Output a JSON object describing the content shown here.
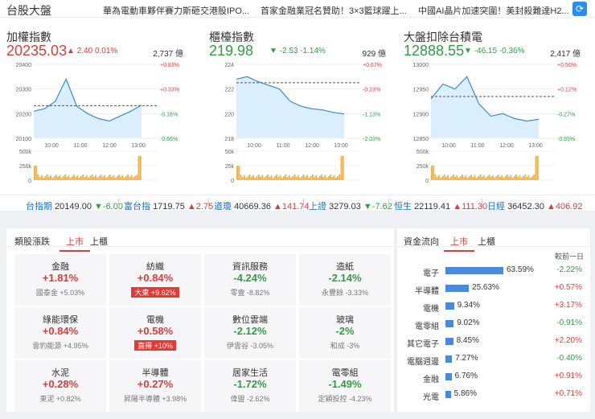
{
  "header": {
    "title": "台股大盤",
    "news": [
      "華為電動車夥伴賽力斯砸交港股IPO...",
      "首家金融業冠名贊助！3×3籃球躍上...",
      "中國AI晶片加速突圍！美封殺難達H2..."
    ],
    "refresh_icon": "refresh-icon"
  },
  "panels": [
    {
      "name": "加權指數",
      "value": "20235.03",
      "change": "2.40",
      "pct": "0.01%",
      "dir": "up",
      "volume": "2,737 億",
      "y_left": [
        "20400",
        "20300",
        "20200",
        "20100"
      ],
      "y_right": [
        "+0.83%",
        "+0.33%",
        "-0.16%",
        "-0.66%"
      ],
      "x_ticks": [
        "10:00",
        "11:00",
        "12:00",
        "13:00"
      ],
      "vol_axis": [
        "500k",
        "250k",
        "0"
      ]
    },
    {
      "name": "櫃檯指數",
      "value": "219.98",
      "change": "-2.53",
      "pct": "-1.14%",
      "dir": "down",
      "volume": "929 億",
      "y_left": [
        "224",
        "222",
        "220",
        "218"
      ],
      "y_right": [
        "+0.67%",
        "-0.23%",
        "-1.13%",
        "-2.03%"
      ],
      "x_ticks": [
        "10:00",
        "11:00",
        "12:00",
        "13:00"
      ],
      "vol_axis": [
        "50k",
        "25k",
        "0"
      ]
    },
    {
      "name": "大盤扣除台積電",
      "value": "12888.55",
      "change": "-46.15",
      "pct": "-0.36%",
      "dir": "down",
      "volume": "2,417 億",
      "y_left": [
        "13000",
        "12950",
        "12900",
        "12850"
      ],
      "y_right": [
        "+0.50%",
        "+0.12%",
        "-0.27%",
        "-0.65%"
      ],
      "x_ticks": [
        "10:00",
        "11:00",
        "12:00",
        "13:00"
      ],
      "vol_axis": [
        "500k",
        "250k",
        "0"
      ]
    }
  ],
  "chart_data": [
    {
      "type": "line",
      "title": "加權指數",
      "x": [
        "09:00",
        "09:30",
        "10:00",
        "10:15",
        "10:30",
        "11:00",
        "11:30",
        "12:00",
        "12:30",
        "13:00",
        "13:30"
      ],
      "y": [
        20210,
        20220,
        20250,
        20340,
        20230,
        20200,
        20180,
        20170,
        20190,
        20210,
        20235
      ],
      "ylim": [
        20100,
        20400
      ],
      "reference": 20232.63
    },
    {
      "type": "line",
      "title": "櫃檯指數",
      "x": [
        "09:00",
        "09:15",
        "09:30",
        "10:00",
        "10:30",
        "11:00",
        "11:30",
        "12:00",
        "12:30",
        "13:00",
        "13:30"
      ],
      "y": [
        222.8,
        223.0,
        222.6,
        222.3,
        222.0,
        221.0,
        220.6,
        220.4,
        220.3,
        220.1,
        219.98
      ],
      "ylim": [
        218,
        224
      ],
      "reference": 222.51
    },
    {
      "type": "line",
      "title": "大盤扣除台積電",
      "x": [
        "09:00",
        "09:30",
        "10:00",
        "10:30",
        "11:00",
        "11:30",
        "12:00",
        "12:30",
        "13:00",
        "13:30"
      ],
      "y": [
        12930,
        12960,
        12950,
        12975,
        12920,
        12895,
        12900,
        12890,
        12885,
        12888.55
      ],
      "ylim": [
        12850,
        13000
      ],
      "reference": 12934.7
    }
  ],
  "ticker": [
    {
      "name": "台指期",
      "value": "20149.00",
      "change": "▼-6.00",
      "dir": "down"
    },
    {
      "name": "富台指",
      "value": "1719.75",
      "change": "▲2.75",
      "dir": "up"
    },
    {
      "name": "道瓊",
      "value": "40669.36",
      "change": "▲141.74",
      "dir": "up"
    },
    {
      "name": "上證",
      "value": "3279.03",
      "change": "▼-7.62",
      "dir": "down"
    },
    {
      "name": "恒生",
      "value": "22119.41",
      "change": "▲111.30",
      "dir": "up"
    },
    {
      "name": "日經",
      "value": "36452.30",
      "change": "▲406.92",
      "dir": "up"
    }
  ],
  "sectors": {
    "title": "類股漲跌",
    "tabs": [
      "上市",
      "上櫃"
    ],
    "items": [
      {
        "name": "金融",
        "pct": "+1.81%",
        "dir": "up",
        "sub": "國泰金 +5.03%",
        "badge": false
      },
      {
        "name": "紡織",
        "pct": "+0.84%",
        "dir": "up",
        "sub": "大東 +9.62%",
        "badge": true
      },
      {
        "name": "資訊服務",
        "pct": "-4.24%",
        "dir": "down",
        "sub": "零壹 -8.82%",
        "badge": false
      },
      {
        "name": "造紙",
        "pct": "-2.14%",
        "dir": "down",
        "sub": "永豐餘 -3.33%",
        "badge": false
      },
      {
        "name": "綠能環保",
        "pct": "+0.84%",
        "dir": "up",
        "sub": "雲豹能源 +4.95%",
        "badge": false
      },
      {
        "name": "電機",
        "pct": "+0.58%",
        "dir": "up",
        "sub": "直得 +10%",
        "badge": true
      },
      {
        "name": "數位雲端",
        "pct": "-2.12%",
        "dir": "down",
        "sub": "伊雲谷 -3.05%",
        "badge": false
      },
      {
        "name": "玻璃",
        "pct": "-2%",
        "dir": "down",
        "sub": "和成 -3%",
        "badge": false
      },
      {
        "name": "水泥",
        "pct": "+0.28%",
        "dir": "up",
        "sub": "東泥 +0.82%",
        "badge": false
      },
      {
        "name": "半導體",
        "pct": "+0.27%",
        "dir": "up",
        "sub": "昇陽半導體 +3.98%",
        "badge": false
      },
      {
        "name": "居家生活",
        "pct": "-1.72%",
        "dir": "down",
        "sub": "偉盟 -2.62%",
        "badge": false
      },
      {
        "name": "電零組",
        "pct": "-1.49%",
        "dir": "down",
        "sub": "定穎投控 -4.23%",
        "badge": false
      }
    ]
  },
  "flow": {
    "title": "資金流向",
    "tabs": [
      "上市",
      "上櫃"
    ],
    "compare_label": "較前一日",
    "items": [
      {
        "name": "電子",
        "pct": 63.59,
        "pct_label": "63.59%",
        "chg": "-2.22%",
        "dir": "down"
      },
      {
        "name": "半導體",
        "pct": 25.63,
        "pct_label": "25.63%",
        "chg": "+0.57%",
        "dir": "up"
      },
      {
        "name": "電機",
        "pct": 9.34,
        "pct_label": "9.34%",
        "chg": "+3.17%",
        "dir": "up"
      },
      {
        "name": "電零組",
        "pct": 9.02,
        "pct_label": "9.02%",
        "chg": "-0.91%",
        "dir": "down"
      },
      {
        "name": "其它電子",
        "pct": 8.45,
        "pct_label": "8.45%",
        "chg": "+2.20%",
        "dir": "up"
      },
      {
        "name": "電腦週邊",
        "pct": 7.27,
        "pct_label": "7.27%",
        "chg": "-0.40%",
        "dir": "down"
      },
      {
        "name": "金融",
        "pct": 6.76,
        "pct_label": "6.76%",
        "chg": "+0.91%",
        "dir": "up"
      },
      {
        "name": "光電",
        "pct": 5.86,
        "pct_label": "5.86%",
        "chg": "+0.71%",
        "dir": "up"
      }
    ]
  }
}
